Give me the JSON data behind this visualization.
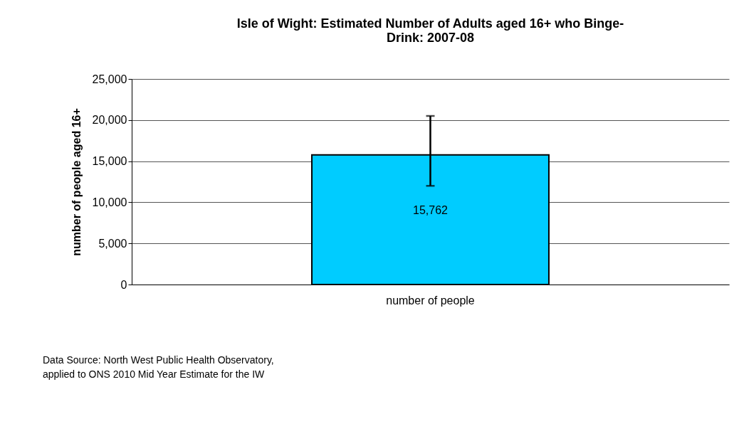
{
  "chart_data": {
    "type": "bar",
    "title": [
      "Isle of Wight: Estimated Number of Adults aged 16+ who Binge-",
      "Drink:  2007-08"
    ],
    "ylabel": "number of people aged 16+",
    "categories": [
      "number of people"
    ],
    "values": [
      15762
    ],
    "color": "#00ccff",
    "errors": [
      [
        12000,
        20500
      ]
    ],
    "value_labels": [
      "15,762"
    ],
    "ylim": [
      0,
      25000
    ],
    "yticks": [
      0,
      {
        "value": 5000,
        "label": "5,000"
      },
      {
        "value": 10000,
        "label": "10,000"
      },
      {
        "value": 15000,
        "label": "15,000"
      },
      {
        "value": 20000,
        "label": "20,000"
      },
      {
        "value": 25000,
        "label": "25,000"
      }
    ],
    "grid": "y",
    "annotations": [
      "Data Source: North West Public Health Observatory,",
      "applied to ONS 2010 Mid Year Estimate for the IW"
    ]
  }
}
